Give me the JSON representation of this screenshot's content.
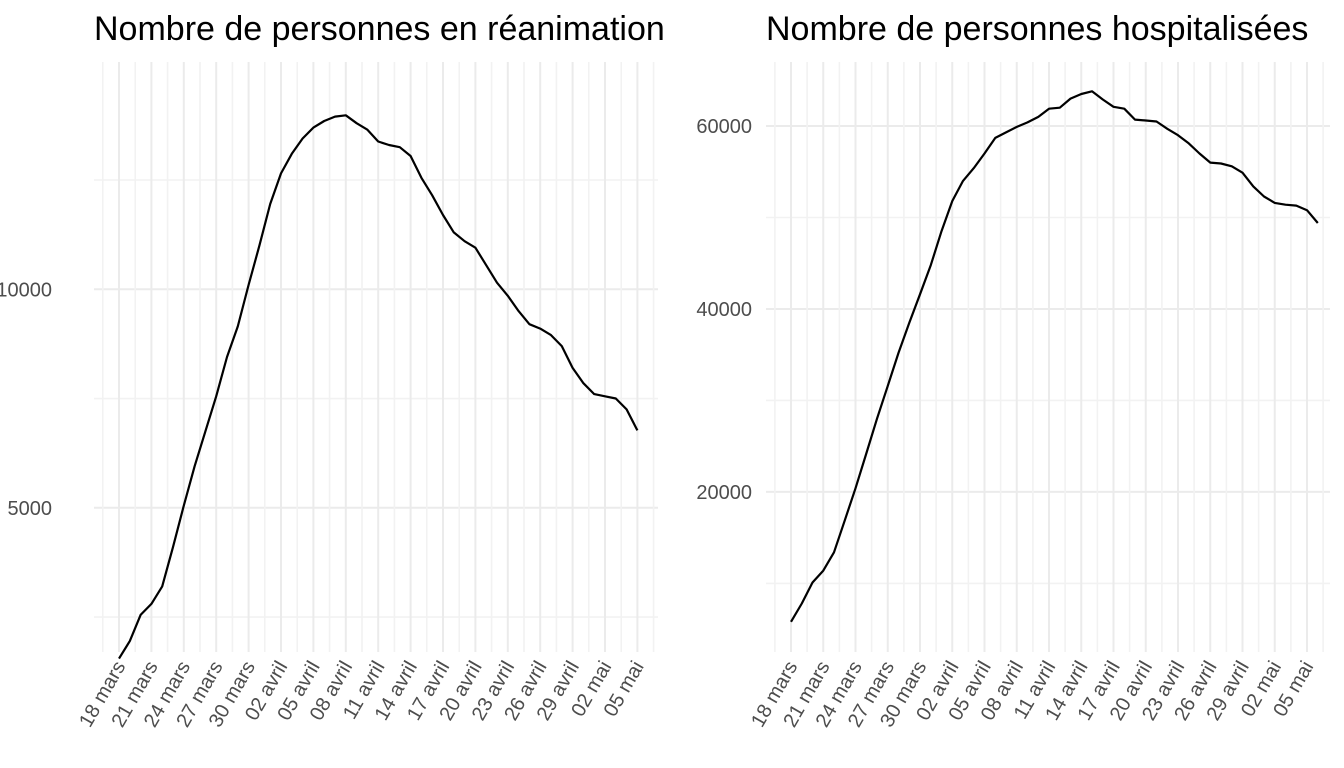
{
  "chart_data": [
    {
      "type": "line",
      "title": "Nombre de personnes en réanimation",
      "xlabel": "",
      "ylabel": "",
      "x_tick_labels": [
        "18 mars",
        "21 mars",
        "24 mars",
        "27 mars",
        "30 mars",
        "02 avril",
        "05 avril",
        "08 avril",
        "11 avril",
        "14 avril",
        "17 avril",
        "20 avril",
        "23 avril",
        "26 avril",
        "29 avril",
        "02 mai",
        "05 mai"
      ],
      "y_tick_labels": [
        "5000",
        "10000"
      ],
      "ylim": [
        1700,
        15200
      ],
      "grid": true,
      "legend": "none",
      "series": [
        {
          "values": [
            1550,
            1950,
            2550,
            2800,
            3200,
            4100,
            5050,
            5950,
            6750,
            7550,
            8450,
            9150,
            10100,
            11000,
            11950,
            12650,
            13100,
            13450,
            13700,
            13850,
            13950,
            13980,
            13800,
            13650,
            13380,
            13300,
            13250,
            13050,
            12550,
            12150,
            11700,
            11300,
            11100,
            10950,
            10550,
            10150,
            9850,
            9500,
            9200,
            9100,
            8950,
            8700,
            8200,
            7850,
            7600,
            7550,
            7500,
            7250,
            6770
          ]
        }
      ]
    },
    {
      "type": "line",
      "title": "Nombre de personnes hospitalisées",
      "xlabel": "",
      "ylabel": "",
      "x_tick_labels": [
        "18 mars",
        "21 mars",
        "24 mars",
        "27 mars",
        "30 mars",
        "02 avril",
        "05 avril",
        "08 avril",
        "11 avril",
        "14 avril",
        "17 avril",
        "20 avril",
        "23 avril",
        "26 avril",
        "29 avril",
        "02 mai",
        "05 mai"
      ],
      "y_tick_labels": [
        "20000",
        "40000",
        "60000"
      ],
      "ylim": [
        2500,
        67000
      ],
      "grid": true,
      "legend": "none",
      "series": [
        {
          "values": [
            5800,
            7800,
            10100,
            11400,
            13400,
            16900,
            20400,
            24200,
            28000,
            31600,
            35200,
            38500,
            41600,
            44800,
            48500,
            51800,
            54000,
            55400,
            57000,
            58700,
            59300,
            59900,
            60400,
            61000,
            61900,
            62000,
            63000,
            63500,
            63800,
            62900,
            62100,
            61900,
            60700,
            60600,
            60500,
            59700,
            59000,
            58100,
            57000,
            56000,
            55900,
            55600,
            54900,
            53400,
            52300,
            51600,
            51400,
            51300,
            50800,
            49400
          ]
        }
      ]
    }
  ]
}
